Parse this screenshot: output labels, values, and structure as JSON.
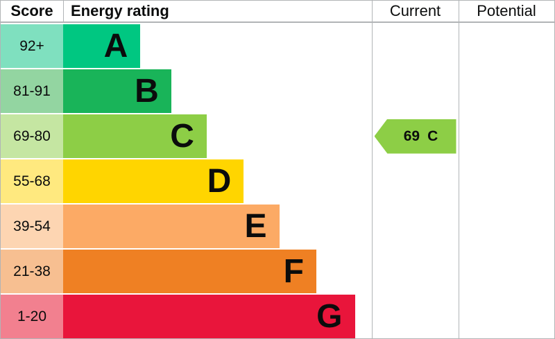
{
  "header": {
    "score": "Score",
    "energy_rating": "Energy rating",
    "current": "Current",
    "potential": "Potential"
  },
  "chart_data": {
    "type": "bar",
    "subtype": "epc-energy-rating-chart",
    "title": "Energy rating",
    "columns": [
      "Score",
      "Energy rating",
      "Current",
      "Potential"
    ],
    "legend_position": "none",
    "grid": "column-dividers",
    "bands": [
      {
        "score": "92+",
        "letter": "A",
        "color": "#00c781",
        "tint": "#7fe0bf",
        "width": "25%"
      },
      {
        "score": "81-91",
        "letter": "B",
        "color": "#19b459",
        "tint": "#93d5a1",
        "width": "35%"
      },
      {
        "score": "69-80",
        "letter": "C",
        "color": "#8dce46",
        "tint": "#c5e6a2",
        "width": "46.5%"
      },
      {
        "score": "55-68",
        "letter": "D",
        "color": "#ffd500",
        "tint": "#ffe97f",
        "width": "58.5%"
      },
      {
        "score": "39-54",
        "letter": "E",
        "color": "#fcaa65",
        "tint": "#fdd5b2",
        "width": "70%"
      },
      {
        "score": "21-38",
        "letter": "F",
        "color": "#ef8023",
        "tint": "#f7bf91",
        "width": "82%"
      },
      {
        "score": "1-20",
        "letter": "G",
        "color": "#e9153b",
        "tint": "#f2808f",
        "width": "94.5%"
      }
    ],
    "current": {
      "value": "69",
      "letter": "C",
      "arrow_color": "#8dce46"
    },
    "potential": null
  }
}
